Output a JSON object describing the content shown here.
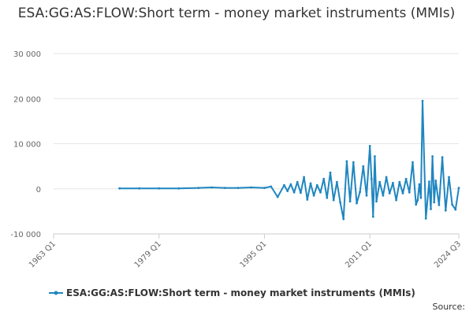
{
  "chart_data": {
    "type": "line",
    "title": "ESA:GG:AS:FLOW:Short term - money market instruments (MMIs)",
    "xlabel": "",
    "ylabel": "",
    "x_range": [
      "1963 Q1",
      "2024 Q3"
    ],
    "ylim": [
      -10000,
      30000
    ],
    "y_ticks": [
      -10000,
      0,
      10000,
      20000,
      30000
    ],
    "y_tick_labels": [
      "-10 000",
      "0",
      "10 000",
      "20 000",
      "30 000"
    ],
    "x_ticks": [
      "1963 Q1",
      "1979 Q1",
      "1995 Q1",
      "2011 Q1",
      "2024 Q3"
    ],
    "grid": "horizontal",
    "legend_position": "bottom",
    "colors": {
      "series": "#1f86c0",
      "grid": "#e6e6e6",
      "axis": "#cccccc"
    },
    "series": [
      {
        "name": "ESA:GG:AS:FLOW:Short term - money market instruments (MMIs)",
        "x": [
          "1973 Q1",
          "1976 Q1",
          "1979 Q1",
          "1982 Q1",
          "1985 Q1",
          "1987 Q1",
          "1989 Q1",
          "1991 Q1",
          "1993 Q1",
          "1995 Q1",
          "1996 Q1",
          "1997 Q1",
          "1998 Q1",
          "1998 Q3",
          "1999 Q1",
          "1999 Q3",
          "2000 Q1",
          "2000 Q3",
          "2001 Q1",
          "2001 Q3",
          "2002 Q1",
          "2002 Q3",
          "2003 Q1",
          "2003 Q3",
          "2004 Q1",
          "2004 Q3",
          "2005 Q1",
          "2005 Q3",
          "2006 Q1",
          "2006 Q3",
          "2007 Q1",
          "2007 Q3",
          "2008 Q1",
          "2008 Q3",
          "2009 Q1",
          "2009 Q3",
          "2010 Q1",
          "2010 Q3",
          "2011 Q1",
          "2011 Q2",
          "2011 Q3",
          "2011 Q4",
          "2012 Q1",
          "2012 Q3",
          "2013 Q1",
          "2013 Q3",
          "2014 Q1",
          "2014 Q3",
          "2015 Q1",
          "2015 Q3",
          "2016 Q1",
          "2016 Q3",
          "2017 Q1",
          "2017 Q3",
          "2018 Q1",
          "2018 Q2",
          "2018 Q3",
          "2018 Q4",
          "2019 Q1",
          "2019 Q3",
          "2020 Q1",
          "2020 Q2",
          "2020 Q3",
          "2020 Q4",
          "2021 Q1",
          "2021 Q3",
          "2022 Q1",
          "2022 Q3",
          "2023 Q1",
          "2023 Q3",
          "2024 Q1",
          "2024 Q3"
        ],
        "values": [
          100,
          100,
          100,
          100,
          200,
          300,
          200,
          200,
          300,
          200,
          500,
          -1800,
          800,
          -500,
          1000,
          -800,
          1500,
          -900,
          2600,
          -2400,
          1200,
          -1500,
          800,
          -800,
          2200,
          -2000,
          3600,
          -2500,
          1500,
          -3000,
          -6700,
          6100,
          -2800,
          5900,
          -3200,
          -700,
          5000,
          -1500,
          9500,
          2200,
          -6200,
          7200,
          -2800,
          1500,
          -1500,
          2600,
          -1000,
          1300,
          -2500,
          1500,
          -1000,
          2200,
          -800,
          5900,
          -3500,
          -2500,
          1000,
          -2000,
          19500,
          -6600,
          1600,
          -4500,
          7200,
          -3000,
          1800,
          -3600,
          7000,
          -4800,
          2600,
          -3500,
          -4600,
          200
        ]
      }
    ]
  },
  "legend": {
    "label": "ESA:GG:AS:FLOW:Short term - money market instruments (MMIs)"
  },
  "source_label": "Source:"
}
